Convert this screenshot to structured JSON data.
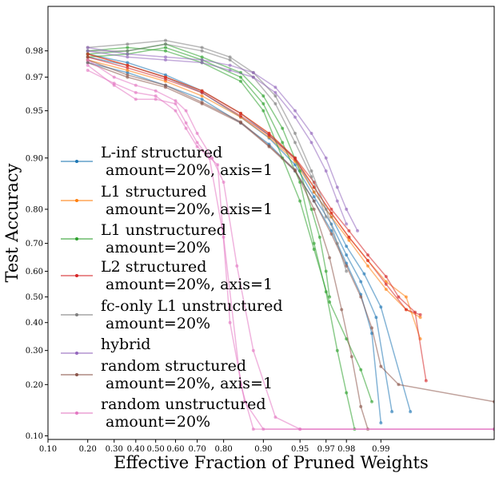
{
  "chart_data": {
    "type": "line",
    "xlabel": "Effective Fraction of Pruned Weights",
    "ylabel": "Test Accuracy",
    "x_scale": "logit",
    "y_scale": "logit",
    "xlim": [
      0.1,
      0.999
    ],
    "ylim": [
      0.095,
      0.99
    ],
    "x_ticks": [
      0.1,
      0.2,
      0.3,
      0.4,
      0.5,
      0.6,
      0.7,
      0.8,
      0.9,
      0.95,
      0.97,
      0.98,
      0.99
    ],
    "x_tick_labels": [
      "0.10",
      "0.20",
      "0.30",
      "0.40",
      "0.50",
      "0.60",
      "0.70",
      "0.80",
      "0.90",
      "0.95",
      "0.97",
      "0.98",
      "0.99"
    ],
    "y_ticks": [
      0.1,
      0.2,
      0.3,
      0.4,
      0.5,
      0.6,
      0.7,
      0.8,
      0.9,
      0.95,
      0.97,
      0.98
    ],
    "y_tick_labels": [
      "0.10",
      "0.20",
      "0.30",
      "0.40",
      "0.50",
      "0.60",
      "0.70",
      "0.80",
      "0.90",
      "0.95",
      "0.97",
      "0.98"
    ],
    "grid": false,
    "legend_position": "center-left",
    "series": [
      {
        "name": "L-inf structured\n amount=20%, axis=1",
        "color": "#1f77b4",
        "runs": [
          [
            [
              0.2,
              0.978
            ],
            [
              0.36,
              0.975
            ],
            [
              0.55,
              0.97
            ],
            [
              0.72,
              0.962
            ],
            [
              0.85,
              0.945
            ],
            [
              0.91,
              0.925
            ],
            [
              0.945,
              0.89
            ],
            [
              0.962,
              0.83
            ],
            [
              0.973,
              0.76
            ],
            [
              0.98,
              0.66
            ],
            [
              0.985,
              0.56
            ],
            [
              0.989,
              0.42
            ],
            [
              0.992,
              0.14
            ]
          ],
          [
            [
              0.2,
              0.976
            ],
            [
              0.36,
              0.972
            ],
            [
              0.55,
              0.966
            ],
            [
              0.72,
              0.958
            ],
            [
              0.85,
              0.94
            ],
            [
              0.91,
              0.918
            ],
            [
              0.945,
              0.88
            ],
            [
              0.962,
              0.82
            ],
            [
              0.973,
              0.74
            ],
            [
              0.98,
              0.63
            ],
            [
              0.985,
              0.51
            ],
            [
              0.988,
              0.36
            ],
            [
              0.99,
              0.12
            ]
          ],
          [
            [
              0.2,
              0.979
            ],
            [
              0.36,
              0.976
            ],
            [
              0.55,
              0.971
            ],
            [
              0.72,
              0.963
            ],
            [
              0.85,
              0.948
            ],
            [
              0.91,
              0.928
            ],
            [
              0.945,
              0.9
            ],
            [
              0.962,
              0.84
            ],
            [
              0.973,
              0.78
            ],
            [
              0.98,
              0.69
            ],
            [
              0.986,
              0.59
            ],
            [
              0.99,
              0.46
            ],
            [
              0.9945,
              0.14
            ]
          ]
        ]
      },
      {
        "name": "L1 structured\n amount=20%, axis=1",
        "color": "#ff7f0e",
        "runs": [
          [
            [
              0.2,
              0.979
            ],
            [
              0.36,
              0.975
            ],
            [
              0.55,
              0.97
            ],
            [
              0.72,
              0.963
            ],
            [
              0.85,
              0.948
            ],
            [
              0.91,
              0.93
            ],
            [
              0.945,
              0.9
            ],
            [
              0.962,
              0.85
            ],
            [
              0.973,
              0.79
            ],
            [
              0.981,
              0.72
            ],
            [
              0.987,
              0.64
            ],
            [
              0.991,
              0.56
            ],
            [
              0.994,
              0.5
            ],
            [
              0.9955,
              0.34
            ]
          ],
          [
            [
              0.2,
              0.977
            ],
            [
              0.36,
              0.973
            ],
            [
              0.55,
              0.968
            ],
            [
              0.72,
              0.96
            ],
            [
              0.85,
              0.945
            ],
            [
              0.91,
              0.926
            ],
            [
              0.945,
              0.895
            ],
            [
              0.962,
              0.84
            ],
            [
              0.973,
              0.78
            ],
            [
              0.981,
              0.71
            ],
            [
              0.987,
              0.62
            ],
            [
              0.991,
              0.53
            ],
            [
              0.994,
              0.45
            ],
            [
              0.9955,
              0.42
            ]
          ]
        ]
      },
      {
        "name": "L1 unstructured\n amount=20%",
        "color": "#2ca02c",
        "runs": [
          [
            [
              0.2,
              0.979
            ],
            [
              0.36,
              0.98
            ],
            [
              0.55,
              0.982
            ],
            [
              0.72,
              0.978
            ],
            [
              0.85,
              0.972
            ],
            [
              0.9,
              0.96
            ],
            [
              0.93,
              0.935
            ],
            [
              0.95,
              0.88
            ],
            [
              0.96,
              0.8
            ],
            [
              0.966,
              0.72
            ],
            [
              0.97,
              0.6
            ],
            [
              0.972,
              0.5
            ]
          ],
          [
            [
              0.2,
              0.978
            ],
            [
              0.36,
              0.979
            ],
            [
              0.55,
              0.981
            ],
            [
              0.72,
              0.977
            ],
            [
              0.85,
              0.97
            ],
            [
              0.9,
              0.955
            ],
            [
              0.93,
              0.92
            ],
            [
              0.95,
              0.86
            ],
            [
              0.962,
              0.7
            ],
            [
              0.97,
              0.52
            ],
            [
              0.976,
              0.3
            ],
            [
              0.98,
              0.18
            ],
            [
              0.983,
              0.11
            ]
          ],
          [
            [
              0.2,
              0.98
            ],
            [
              0.36,
              0.981
            ],
            [
              0.55,
              0.98
            ],
            [
              0.72,
              0.976
            ],
            [
              0.85,
              0.968
            ],
            [
              0.9,
              0.95
            ],
            [
              0.93,
              0.9
            ],
            [
              0.95,
              0.82
            ],
            [
              0.962,
              0.68
            ],
            [
              0.972,
              0.48
            ],
            [
              0.98,
              0.34
            ],
            [
              0.985,
              0.24
            ],
            [
              0.988,
              0.16
            ]
          ]
        ]
      },
      {
        "name": "L2 structured\n amount=20%, axis=1",
        "color": "#d62728",
        "runs": [
          [
            [
              0.2,
              0.979
            ],
            [
              0.36,
              0.975
            ],
            [
              0.55,
              0.97
            ],
            [
              0.72,
              0.963
            ],
            [
              0.85,
              0.948
            ],
            [
              0.91,
              0.93
            ],
            [
              0.945,
              0.9
            ],
            [
              0.962,
              0.86
            ],
            [
              0.973,
              0.8
            ],
            [
              0.981,
              0.74
            ],
            [
              0.987,
              0.66
            ],
            [
              0.991,
              0.58
            ],
            [
              0.993,
              0.5
            ],
            [
              0.995,
              0.44
            ],
            [
              0.996,
              0.21
            ]
          ],
          [
            [
              0.2,
              0.978
            ],
            [
              0.36,
              0.974
            ],
            [
              0.55,
              0.969
            ],
            [
              0.72,
              0.962
            ],
            [
              0.85,
              0.946
            ],
            [
              0.91,
              0.928
            ],
            [
              0.945,
              0.898
            ],
            [
              0.962,
              0.85
            ],
            [
              0.973,
              0.79
            ],
            [
              0.981,
              0.72
            ],
            [
              0.987,
              0.64
            ],
            [
              0.991,
              0.55
            ],
            [
              0.994,
              0.45
            ],
            [
              0.9955,
              0.43
            ]
          ]
        ]
      },
      {
        "name": "fc-only L1 unstructured\n amount=20%",
        "color": "#7f7f7f",
        "runs": [
          [
            [
              0.2,
              0.981
            ],
            [
              0.36,
              0.982
            ],
            [
              0.55,
              0.983
            ],
            [
              0.72,
              0.981
            ],
            [
              0.82,
              0.978
            ],
            [
              0.88,
              0.972
            ],
            [
              0.92,
              0.96
            ],
            [
              0.945,
              0.93
            ],
            [
              0.96,
              0.88
            ],
            [
              0.97,
              0.8
            ],
            [
              0.976,
              0.7
            ],
            [
              0.98,
              0.6
            ]
          ],
          [
            [
              0.2,
              0.98
            ],
            [
              0.36,
              0.98
            ],
            [
              0.55,
              0.982
            ],
            [
              0.72,
              0.98
            ],
            [
              0.82,
              0.977
            ],
            [
              0.88,
              0.97
            ],
            [
              0.92,
              0.955
            ],
            [
              0.945,
              0.92
            ],
            [
              0.96,
              0.87
            ],
            [
              0.97,
              0.78
            ]
          ]
        ]
      },
      {
        "name": "hybrid",
        "color": "#9467bd",
        "runs": [
          [
            [
              0.2,
              0.981
            ],
            [
              0.36,
              0.979
            ],
            [
              0.55,
              0.978
            ],
            [
              0.72,
              0.977
            ],
            [
              0.82,
              0.975
            ],
            [
              0.88,
              0.972
            ],
            [
              0.92,
              0.965
            ],
            [
              0.945,
              0.95
            ],
            [
              0.96,
              0.93
            ],
            [
              0.97,
              0.9
            ],
            [
              0.976,
              0.85
            ],
            [
              0.98,
              0.8
            ],
            [
              0.984,
              0.74
            ]
          ],
          [
            [
              0.2,
              0.98
            ],
            [
              0.36,
              0.978
            ],
            [
              0.55,
              0.977
            ],
            [
              0.72,
              0.976
            ],
            [
              0.82,
              0.973
            ],
            [
              0.88,
              0.97
            ],
            [
              0.92,
              0.962
            ],
            [
              0.945,
              0.945
            ],
            [
              0.96,
              0.92
            ],
            [
              0.97,
              0.88
            ],
            [
              0.976,
              0.82
            ],
            [
              0.98,
              0.76
            ]
          ]
        ]
      },
      {
        "name": "random structured\n amount=20%, axis=1",
        "color": "#8c564b",
        "runs": [
          [
            [
              0.2,
              0.976
            ],
            [
              0.36,
              0.97
            ],
            [
              0.55,
              0.965
            ],
            [
              0.72,
              0.955
            ],
            [
              0.85,
              0.94
            ],
            [
              0.91,
              0.915
            ],
            [
              0.945,
              0.88
            ],
            [
              0.962,
              0.82
            ],
            [
              0.973,
              0.73
            ],
            [
              0.98,
              0.62
            ],
            [
              0.985,
              0.5
            ],
            [
              0.988,
              0.38
            ],
            [
              0.99,
              0.25
            ],
            [
              0.993,
              0.2
            ],
            [
              0.999,
              0.16
            ]
          ],
          [
            [
              0.2,
              0.977
            ],
            [
              0.36,
              0.971
            ],
            [
              0.55,
              0.966
            ],
            [
              0.72,
              0.956
            ],
            [
              0.85,
              0.941
            ],
            [
              0.91,
              0.916
            ],
            [
              0.945,
              0.882
            ],
            [
              0.962,
              0.8
            ],
            [
              0.972,
              0.65
            ],
            [
              0.978,
              0.45
            ],
            [
              0.982,
              0.28
            ],
            [
              0.985,
              0.15
            ],
            [
              0.987,
              0.11
            ]
          ]
        ]
      },
      {
        "name": "random unstructured\n amount=20%",
        "color": "#e377c2",
        "runs": [
          [
            [
              0.2,
              0.975
            ],
            [
              0.3,
              0.966
            ],
            [
              0.4,
              0.958
            ],
            [
              0.5,
              0.958
            ],
            [
              0.6,
              0.955
            ],
            [
              0.65,
              0.94
            ],
            [
              0.7,
              0.92
            ],
            [
              0.75,
              0.9
            ],
            [
              0.8,
              0.72
            ],
            [
              0.85,
              0.2
            ],
            [
              0.88,
              0.11
            ],
            [
              0.95,
              0.11
            ],
            [
              0.999,
              0.11
            ]
          ],
          [
            [
              0.2,
              0.973
            ],
            [
              0.3,
              0.967
            ],
            [
              0.4,
              0.962
            ],
            [
              0.5,
              0.96
            ],
            [
              0.6,
              0.95
            ],
            [
              0.65,
              0.935
            ],
            [
              0.7,
              0.915
            ],
            [
              0.78,
              0.89
            ],
            [
              0.82,
              0.4
            ],
            [
              0.86,
              0.16
            ],
            [
              0.9,
              0.11
            ],
            [
              0.999,
              0.11
            ]
          ],
          [
            [
              0.2,
              0.977
            ],
            [
              0.3,
              0.97
            ],
            [
              0.4,
              0.966
            ],
            [
              0.5,
              0.963
            ],
            [
              0.6,
              0.957
            ],
            [
              0.65,
              0.95
            ],
            [
              0.7,
              0.93
            ],
            [
              0.76,
              0.9
            ],
            [
              0.8,
              0.86
            ],
            [
              0.84,
              0.62
            ],
            [
              0.88,
              0.3
            ],
            [
              0.92,
              0.13
            ],
            [
              0.95,
              0.11
            ],
            [
              0.999,
              0.11
            ]
          ]
        ]
      }
    ]
  }
}
